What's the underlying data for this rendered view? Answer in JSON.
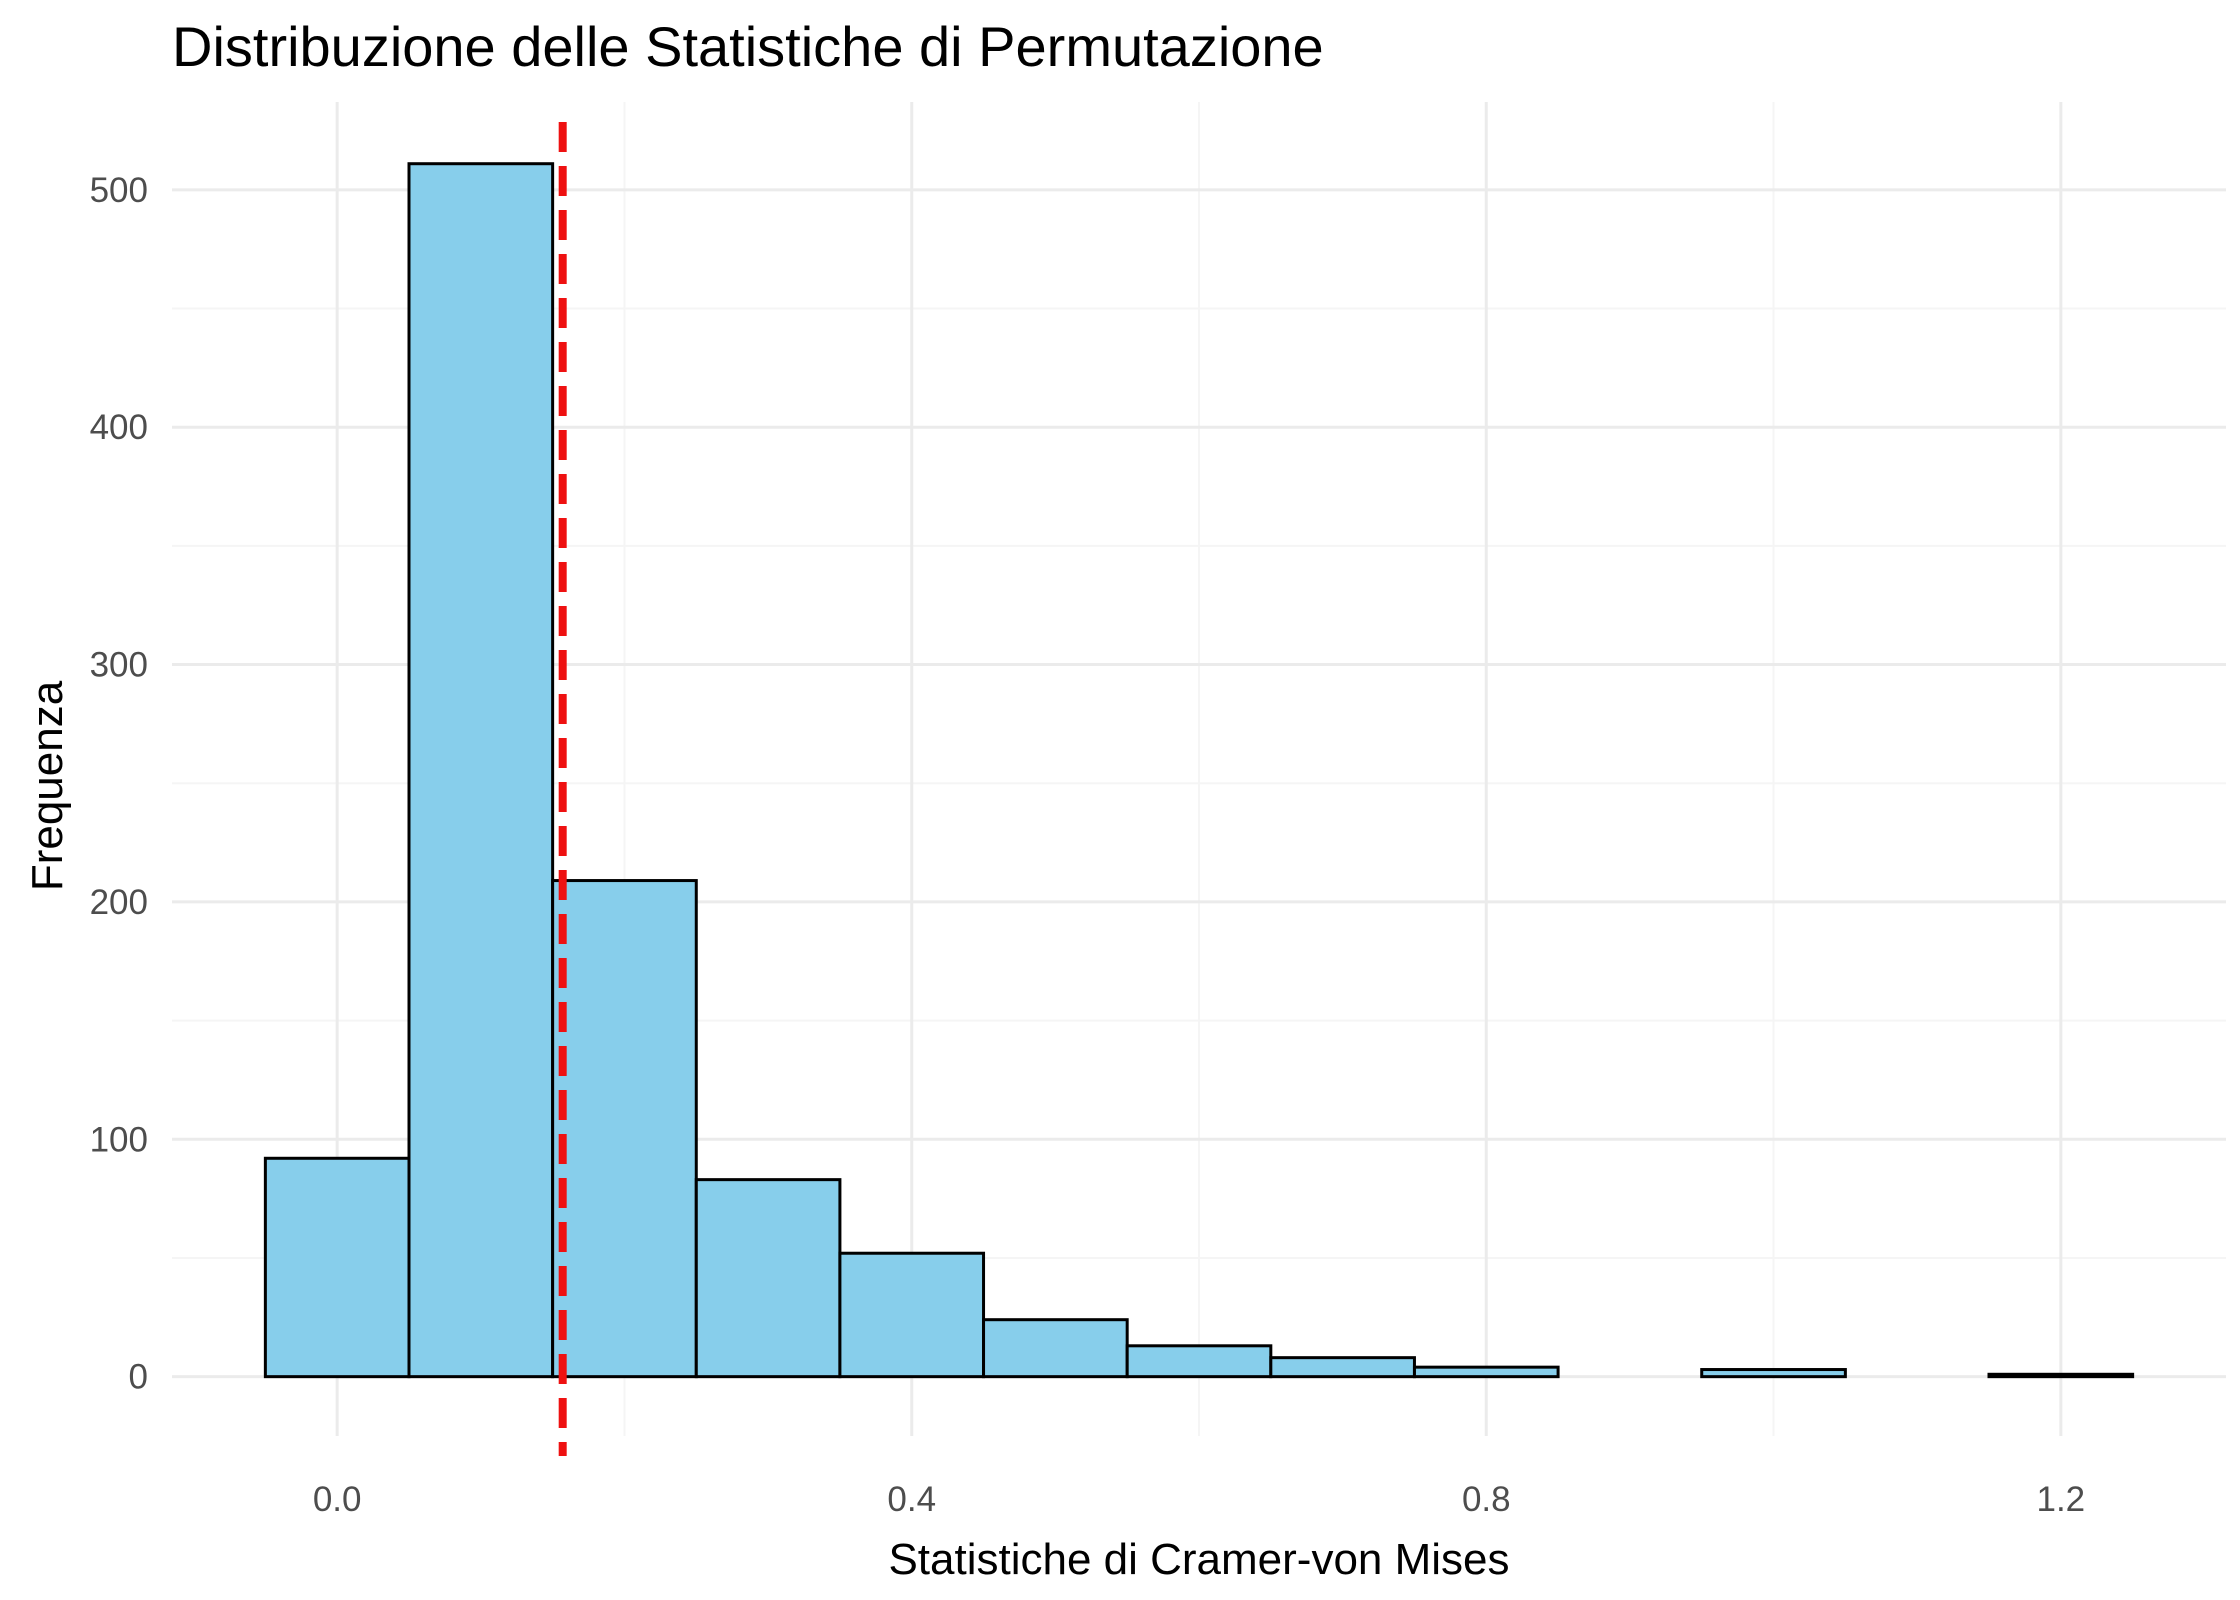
{
  "chart_data": {
    "type": "bar",
    "title": "Distribuzione delle Statistiche di Permutazione",
    "xlabel": "Statistiche di Cramer-von Mises",
    "ylabel": "Frequenza",
    "bin_width": 0.1,
    "bins": [
      {
        "x0": -0.05,
        "x1": 0.05,
        "count": 92
      },
      {
        "x0": 0.05,
        "x1": 0.15,
        "count": 511
      },
      {
        "x0": 0.15,
        "x1": 0.25,
        "count": 209
      },
      {
        "x0": 0.25,
        "x1": 0.35,
        "count": 83
      },
      {
        "x0": 0.35,
        "x1": 0.45,
        "count": 52
      },
      {
        "x0": 0.45,
        "x1": 0.55,
        "count": 24
      },
      {
        "x0": 0.55,
        "x1": 0.65,
        "count": 13
      },
      {
        "x0": 0.65,
        "x1": 0.75,
        "count": 8
      },
      {
        "x0": 0.75,
        "x1": 0.85,
        "count": 4
      },
      {
        "x0": 0.85,
        "x1": 0.95,
        "count": 0
      },
      {
        "x0": 0.95,
        "x1": 1.05,
        "count": 3
      },
      {
        "x0": 1.05,
        "x1": 1.15,
        "count": 0
      },
      {
        "x0": 1.15,
        "x1": 1.25,
        "count": 1
      }
    ],
    "reference_line": {
      "x": 0.157,
      "style": "dashed",
      "color": "#ee1111"
    },
    "xlim": [
      -0.115,
      1.315
    ],
    "ylim": [
      -25,
      537
    ],
    "x_ticks": [
      {
        "value": 0.0,
        "label": "0.0"
      },
      {
        "value": 0.4,
        "label": "0.4"
      },
      {
        "value": 0.8,
        "label": "0.8"
      },
      {
        "value": 1.2,
        "label": "1.2"
      }
    ],
    "x_minor_ticks": [
      0.2,
      0.6,
      1.0
    ],
    "y_ticks": [
      {
        "value": 0,
        "label": "0"
      },
      {
        "value": 100,
        "label": "100"
      },
      {
        "value": 200,
        "label": "200"
      },
      {
        "value": 300,
        "label": "300"
      },
      {
        "value": 400,
        "label": "400"
      },
      {
        "value": 500,
        "label": "500"
      }
    ],
    "y_minor_ticks": [
      50,
      150,
      250,
      350,
      450
    ],
    "grid": true,
    "legend": "none",
    "colors": {
      "bar_fill": "#87ceeb",
      "bar_stroke": "#000000",
      "grid_major": "#ebebeb",
      "grid_minor": "#f5f5f5",
      "tick_label": "#4d4d4d"
    }
  }
}
